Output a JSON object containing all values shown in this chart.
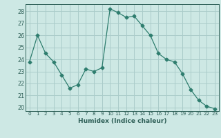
{
  "x": [
    0,
    1,
    2,
    3,
    4,
    5,
    6,
    7,
    8,
    9,
    10,
    11,
    12,
    13,
    14,
    15,
    16,
    17,
    18,
    19,
    20,
    21,
    22,
    23
  ],
  "y": [
    23.8,
    26.0,
    24.5,
    23.8,
    22.7,
    21.6,
    21.9,
    23.2,
    23.0,
    23.3,
    28.2,
    27.9,
    27.5,
    27.6,
    26.8,
    26.0,
    24.5,
    24.0,
    23.8,
    22.8,
    21.5,
    20.6,
    20.1,
    19.9
  ],
  "line_color": "#2e7d6e",
  "marker": "D",
  "marker_size": 2.5,
  "bg_color": "#cde8e4",
  "grid_color": "#aaccca",
  "tick_color": "#2e5f57",
  "xlabel": "Humidex (Indice chaleur)",
  "ylim": [
    19.7,
    28.6
  ],
  "xlim": [
    -0.5,
    23.5
  ],
  "yticks": [
    20,
    21,
    22,
    23,
    24,
    25,
    26,
    27,
    28
  ],
  "xticks": [
    0,
    1,
    2,
    3,
    4,
    5,
    6,
    7,
    8,
    9,
    10,
    11,
    12,
    13,
    14,
    15,
    16,
    17,
    18,
    19,
    20,
    21,
    22,
    23
  ]
}
